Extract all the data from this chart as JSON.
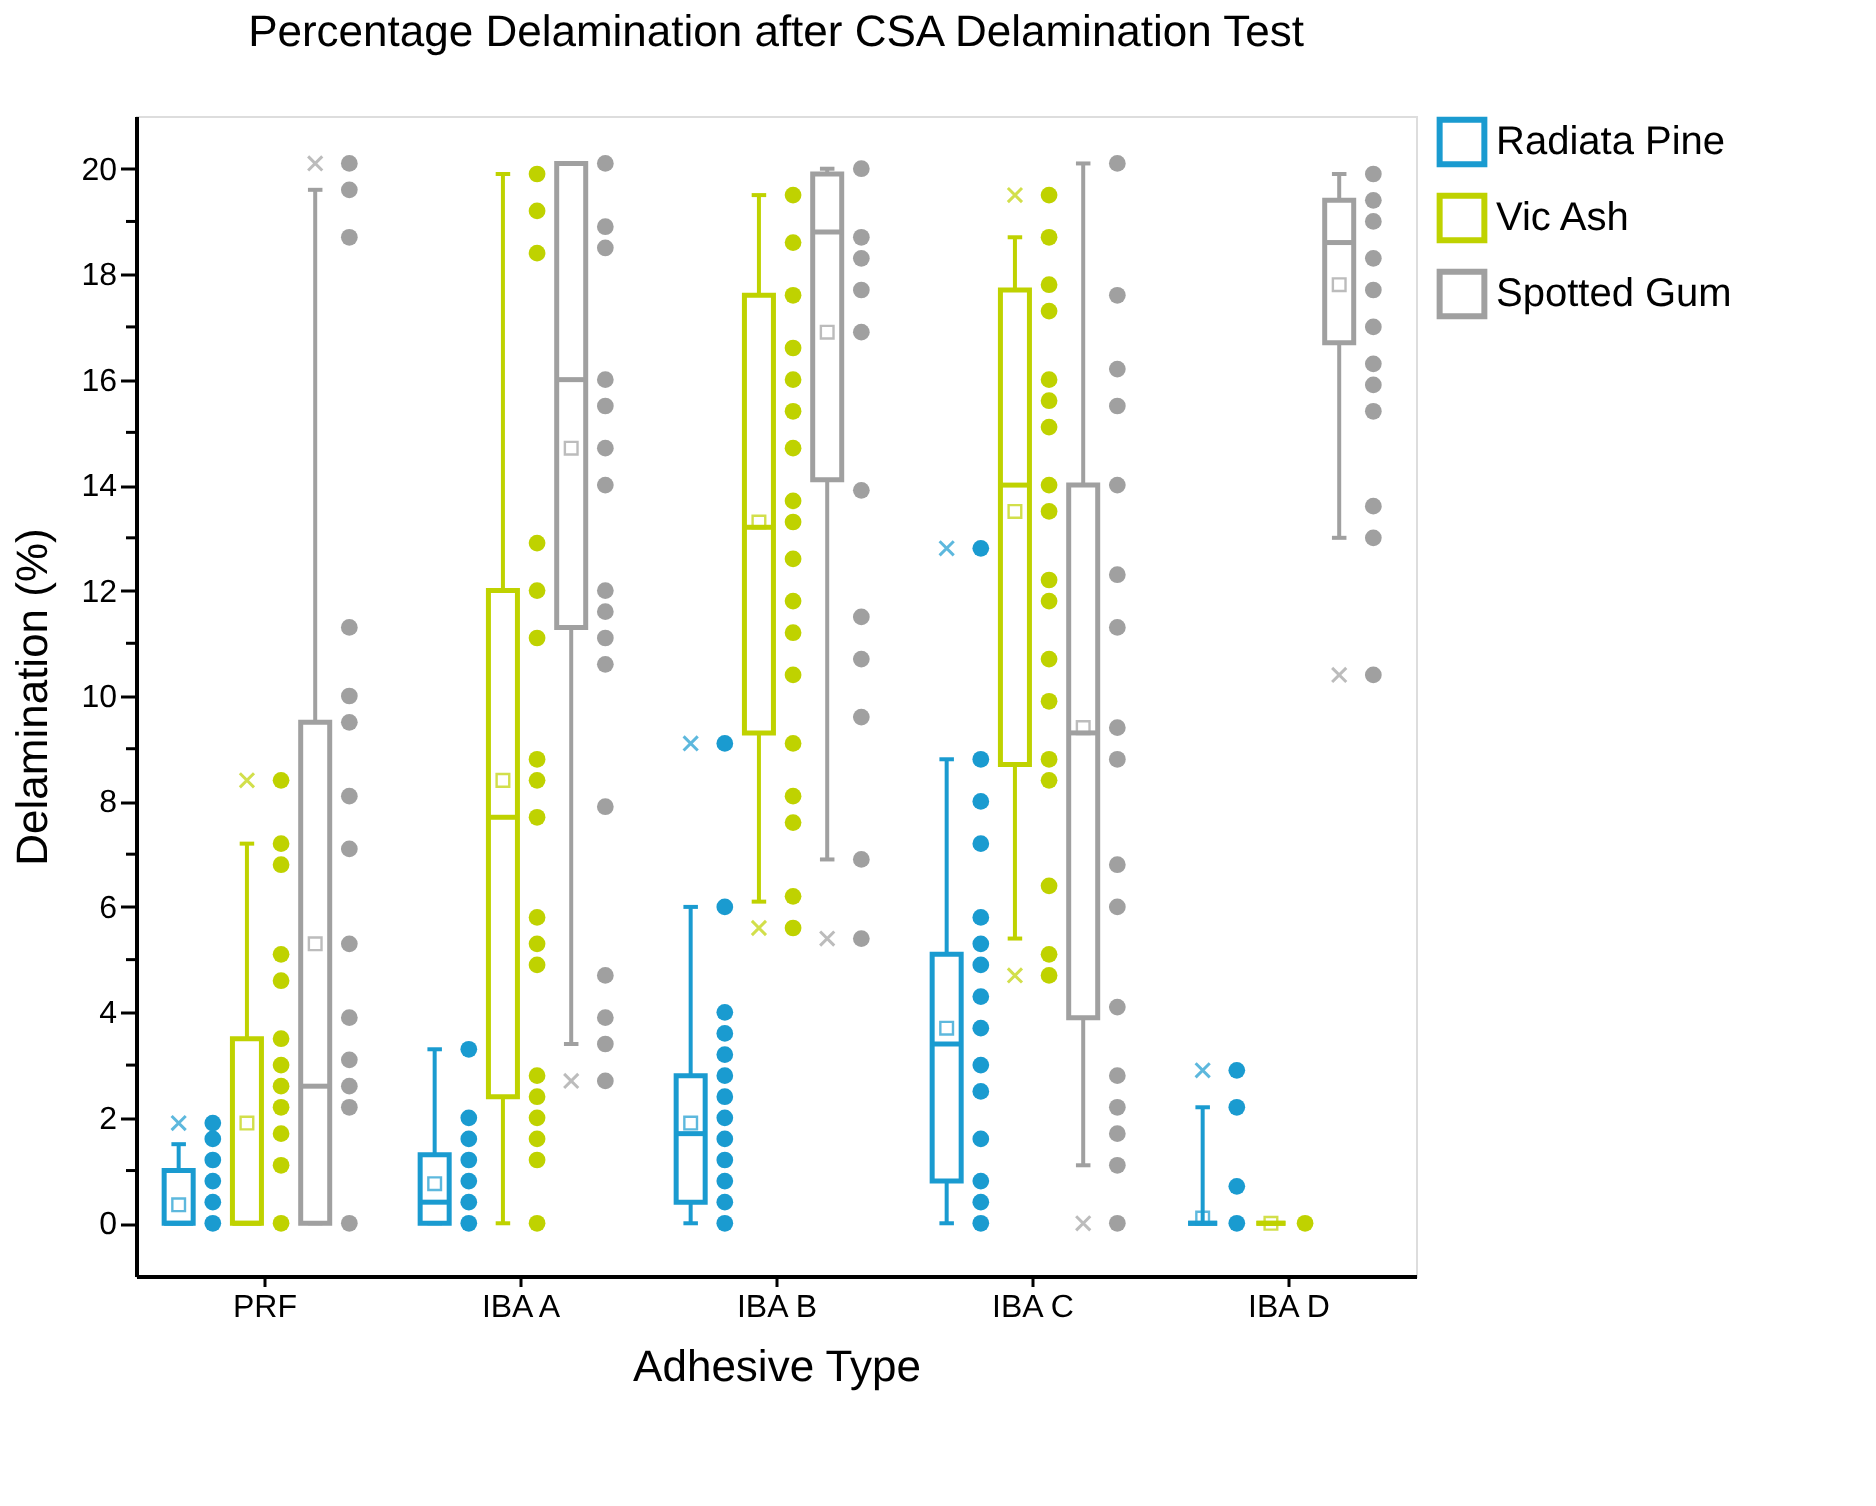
{
  "chart_data": {
    "type": "box",
    "title": "Percentage Delamination after CSA Delamination Test",
    "xlabel": "Adhesive Type",
    "ylabel": "Delamination (%)",
    "categories": [
      "PRF",
      "IBA A",
      "IBA B",
      "IBA C",
      "IBA D"
    ],
    "ylim": [
      -1,
      21
    ],
    "yticks": [
      0,
      {
        "value": 1,
        "label": null
      },
      2,
      {
        "value": 3,
        "label": null
      },
      4,
      {
        "value": 5,
        "label": null
      },
      6,
      {
        "value": 7,
        "label": null
      },
      8,
      {
        "value": 9,
        "label": null
      },
      10,
      {
        "value": 11,
        "label": null
      },
      12,
      {
        "value": 13,
        "label": null
      },
      14,
      {
        "value": 15,
        "label": null
      },
      16,
      {
        "value": 17,
        "label": null
      },
      18,
      {
        "value": 19,
        "label": null
      },
      20
    ],
    "grid": false,
    "legend": "right",
    "marker": "circle",
    "series": [
      {
        "name": "Radiata Pine",
        "color": "#1a9bd0",
        "boxes": [
          {
            "low": 0,
            "q1": 0,
            "median": 0,
            "q3": 1.0,
            "high": 1.5,
            "mean": 0.35,
            "outliers": [
              1.9
            ]
          },
          {
            "low": 0,
            "q1": 0,
            "median": 0.4,
            "q3": 1.3,
            "high": 3.3,
            "mean": 0.75
          },
          {
            "low": 0,
            "q1": 0.4,
            "median": 1.7,
            "q3": 2.8,
            "high": 6.0,
            "mean": 1.9,
            "outliers": [
              9.1
            ]
          },
          {
            "low": 0,
            "q1": 0.8,
            "median": 3.4,
            "q3": 5.1,
            "high": 8.8,
            "mean": 3.7,
            "outliers": [
              12.8
            ]
          },
          {
            "low": 0,
            "q1": 0,
            "median": 0,
            "q3": 0,
            "high": 2.2,
            "mean": 0.1,
            "outliers": [
              2.9
            ]
          }
        ]
      },
      {
        "name": "Vic Ash",
        "color": "#bfd200",
        "boxes": [
          {
            "low": 0,
            "q1": 0,
            "median": 0,
            "q3": 3.5,
            "high": 7.2,
            "mean": 1.9,
            "outliers": [
              8.4
            ]
          },
          {
            "low": 0,
            "q1": 2.4,
            "median": 7.7,
            "q3": 12.0,
            "high": 19.9,
            "mean": 8.4
          },
          {
            "low": 6.1,
            "q1": 9.3,
            "median": 13.2,
            "q3": 17.6,
            "high": 19.5,
            "mean": 13.3,
            "outliers": [
              5.6
            ]
          },
          {
            "low": 5.4,
            "q1": 8.7,
            "median": 14.0,
            "q3": 17.7,
            "high": 18.7,
            "mean": 13.5,
            "outliers": [
              19.5,
              4.7
            ]
          },
          {
            "low": 0,
            "q1": 0,
            "median": 0,
            "q3": 0,
            "high": 0,
            "mean": 0
          }
        ]
      },
      {
        "name": "Spotted Gum",
        "color": "#a0a0a0",
        "boxes": [
          {
            "low": 0,
            "q1": 0,
            "median": 2.6,
            "q3": 9.5,
            "high": 19.6,
            "mean": 5.3,
            "outliers": [
              20.1
            ]
          },
          {
            "low": 3.4,
            "q1": 11.3,
            "median": 16.0,
            "q3": 20.1,
            "high": 20.1,
            "mean": 14.7,
            "outliers": [
              2.7
            ]
          },
          {
            "low": 6.9,
            "q1": 14.1,
            "median": 18.8,
            "q3": 19.9,
            "high": 20.0,
            "mean": 16.9,
            "outliers": [
              5.4
            ]
          },
          {
            "low": 1.1,
            "q1": 3.9,
            "median": 9.3,
            "q3": 14.0,
            "high": 20.1,
            "mean": 9.4,
            "outliers": [
              0
            ]
          },
          {
            "low": 13.0,
            "q1": 16.7,
            "median": 18.6,
            "q3": 19.4,
            "high": 19.9,
            "mean": 17.8,
            "outliers": [
              10.4
            ]
          }
        ]
      },
      {
        "type": "scatter",
        "color": "#1a9bd0",
        "x": [
          "PRF",
          "PRF",
          "PRF",
          "PRF",
          "PRF",
          "PRF",
          "IBA A",
          "IBA A",
          "IBA A",
          "IBA A",
          "IBA A",
          "IBA A",
          "IBA A",
          "IBA B",
          "IBA B",
          "IBA B",
          "IBA B",
          "IBA B",
          "IBA B",
          "IBA B",
          "IBA B",
          "IBA B",
          "IBA B",
          "IBA B",
          "IBA B",
          "IBA B",
          "IBA C",
          "IBA C",
          "IBA C",
          "IBA C",
          "IBA C",
          "IBA C",
          "IBA C",
          "IBA C",
          "IBA C",
          "IBA C",
          "IBA C",
          "IBA C",
          "IBA C",
          "IBA C",
          "IBA C",
          "IBA D",
          "IBA D",
          "IBA D",
          "IBA D"
        ],
        "values": [
          0,
          0.4,
          0.8,
          1.2,
          1.6,
          1.9,
          0,
          0.4,
          0.8,
          1.2,
          1.6,
          2.0,
          3.3,
          0,
          0.4,
          0.8,
          1.2,
          1.6,
          2.0,
          2.4,
          2.8,
          3.2,
          3.6,
          4.0,
          6.0,
          9.1,
          0,
          0.4,
          0.8,
          1.6,
          2.5,
          3.0,
          3.7,
          4.3,
          4.9,
          5.3,
          5.8,
          7.2,
          8.0,
          8.8,
          12.8,
          0,
          0.7,
          2.2,
          2.9
        ]
      },
      {
        "type": "scatter",
        "color": "#bfd200",
        "x": [
          "PRF",
          "PRF",
          "PRF",
          "PRF",
          "PRF",
          "PRF",
          "PRF",
          "PRF",
          "PRF",
          "PRF",
          "PRF",
          "PRF",
          "IBA A",
          "IBA A",
          "IBA A",
          "IBA A",
          "IBA A",
          "IBA A",
          "IBA A",
          "IBA A",
          "IBA A",
          "IBA A",
          "IBA A",
          "IBA A",
          "IBA A",
          "IBA A",
          "IBA A",
          "IBA A",
          "IBA A",
          "IBA A",
          "IBA B",
          "IBA B",
          "IBA B",
          "IBA B",
          "IBA B",
          "IBA B",
          "IBA B",
          "IBA B",
          "IBA B",
          "IBA B",
          "IBA B",
          "IBA B",
          "IBA B",
          "IBA B",
          "IBA B",
          "IBA B",
          "IBA B",
          "IBA B",
          "IBA C",
          "IBA C",
          "IBA C",
          "IBA C",
          "IBA C",
          "IBA C",
          "IBA C",
          "IBA C",
          "IBA C",
          "IBA C",
          "IBA C",
          "IBA C",
          "IBA C",
          "IBA C",
          "IBA C",
          "IBA C",
          "IBA C",
          "IBA C",
          "IBA D"
        ],
        "values": [
          0,
          1.1,
          1.7,
          2.2,
          2.6,
          3.0,
          3.5,
          4.6,
          5.1,
          6.8,
          7.2,
          8.4,
          0,
          1.2,
          1.6,
          2.0,
          2.4,
          2.8,
          4.9,
          5.3,
          5.8,
          7.7,
          8.4,
          8.8,
          11.1,
          12.0,
          12.9,
          18.4,
          19.2,
          19.9,
          5.6,
          6.2,
          7.6,
          8.1,
          9.1,
          10.4,
          11.2,
          11.8,
          12.6,
          13.3,
          13.7,
          14.7,
          15.4,
          16.0,
          16.6,
          17.6,
          18.6,
          19.5,
          4.7,
          5.1,
          6.4,
          8.4,
          8.8,
          9.9,
          10.7,
          11.8,
          12.2,
          13.5,
          14.0,
          15.1,
          15.6,
          16.0,
          17.3,
          17.8,
          18.7,
          19.5,
          0
        ]
      },
      {
        "type": "scatter",
        "color": "#a0a0a0",
        "x": [
          "PRF",
          "PRF",
          "PRF",
          "PRF",
          "PRF",
          "PRF",
          "PRF",
          "PRF",
          "PRF",
          "PRF",
          "PRF",
          "PRF",
          "PRF",
          "PRF",
          "IBA A",
          "IBA A",
          "IBA A",
          "IBA A",
          "IBA A",
          "IBA A",
          "IBA A",
          "IBA A",
          "IBA A",
          "IBA A",
          "IBA A",
          "IBA A",
          "IBA A",
          "IBA A",
          "IBA A",
          "IBA A",
          "IBA B",
          "IBA B",
          "IBA B",
          "IBA B",
          "IBA B",
          "IBA B",
          "IBA B",
          "IBA B",
          "IBA B",
          "IBA B",
          "IBA B",
          "IBA C",
          "IBA C",
          "IBA C",
          "IBA C",
          "IBA C",
          "IBA C",
          "IBA C",
          "IBA C",
          "IBA C",
          "IBA C",
          "IBA C",
          "IBA C",
          "IBA C",
          "IBA C",
          "IBA C",
          "IBA C",
          "IBA C",
          "IBA D",
          "IBA D",
          "IBA D",
          "IBA D",
          "IBA D",
          "IBA D",
          "IBA D",
          "IBA D",
          "IBA D",
          "IBA D",
          "IBA D",
          "IBA D"
        ],
        "values": [
          0,
          2.2,
          2.6,
          3.1,
          3.9,
          5.3,
          7.1,
          8.1,
          9.5,
          10.0,
          11.3,
          18.7,
          19.6,
          20.1,
          2.7,
          3.4,
          3.9,
          4.7,
          7.9,
          10.6,
          11.1,
          11.6,
          12.0,
          14.0,
          14.7,
          15.5,
          16.0,
          18.5,
          18.9,
          20.1,
          5.4,
          6.9,
          9.6,
          10.7,
          11.5,
          13.9,
          16.9,
          17.7,
          18.3,
          18.7,
          20.0,
          0,
          1.1,
          1.7,
          2.2,
          2.8,
          4.1,
          6.0,
          6.8,
          8.8,
          9.4,
          11.3,
          12.3,
          14.0,
          15.5,
          16.2,
          17.6,
          20.1,
          10.4,
          13.0,
          13.6,
          15.4,
          15.9,
          16.3,
          17.0,
          17.7,
          18.3,
          19.0,
          19.4,
          19.9
        ]
      }
    ]
  }
}
